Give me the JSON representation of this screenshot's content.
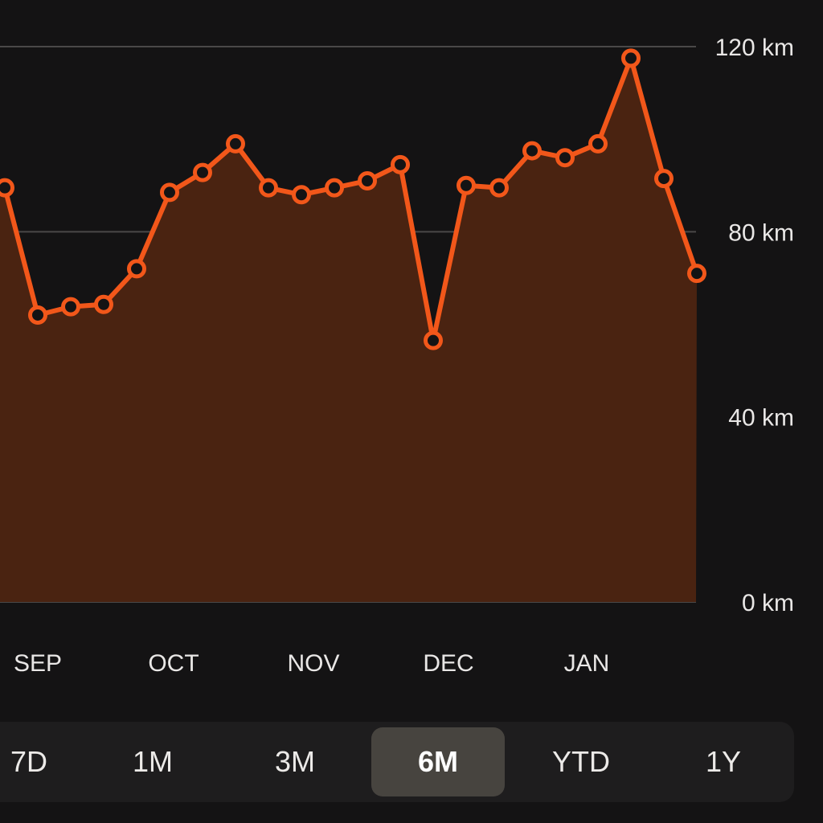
{
  "chart_data": {
    "type": "area",
    "title": "",
    "xlabel": "",
    "ylabel": "",
    "y_unit": "km",
    "ylim": [
      0,
      120
    ],
    "y_ticks": [
      {
        "value": 120,
        "label": "120 km"
      },
      {
        "value": 80,
        "label": "80 km"
      },
      {
        "value": 40,
        "label": "40 km"
      },
      {
        "value": 0,
        "label": "0 km"
      }
    ],
    "month_labels": [
      "SEP",
      "OCT",
      "NOV",
      "DEC",
      "JAN"
    ],
    "grid": true,
    "series": [
      {
        "values": [
          89.5,
          62,
          63.8,
          64.3,
          72,
          88.5,
          92.8,
          99,
          89.5,
          88,
          89.5,
          91,
          94.5,
          56.5,
          90,
          89.5,
          97.5,
          96,
          99,
          117.5,
          91.5,
          71
        ]
      }
    ],
    "colors": {
      "line": "#f2571a",
      "fill": "#4a2311",
      "grid": "#4a4848",
      "background": "#141314"
    }
  },
  "range_selector": {
    "selected": "6M",
    "options": [
      "7D",
      "1M",
      "3M",
      "6M",
      "YTD",
      "1Y"
    ]
  }
}
